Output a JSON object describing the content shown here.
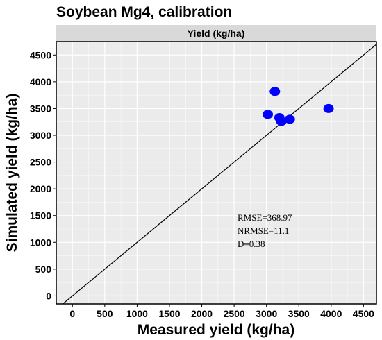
{
  "chart_data": {
    "type": "scatter",
    "title": "Soybean Mg4, calibration",
    "facet_label": "Yield (kg/ha)",
    "xlabel": "Measured yield (kg/ha)",
    "ylabel": "Simulated yield (kg/ha)",
    "xlim": [
      -250,
      4700
    ],
    "ylim": [
      -150,
      4750
    ],
    "xticks": [
      0,
      500,
      1000,
      1500,
      2000,
      2500,
      3000,
      3500,
      4000,
      4500
    ],
    "yticks": [
      0,
      500,
      1000,
      1500,
      2000,
      2500,
      3000,
      3500,
      4000,
      4500
    ],
    "grid": true,
    "reference_line": "1:1",
    "points": [
      {
        "x": 3130,
        "y": 3820
      },
      {
        "x": 3020,
        "y": 3390
      },
      {
        "x": 3200,
        "y": 3330
      },
      {
        "x": 3230,
        "y": 3260
      },
      {
        "x": 3360,
        "y": 3300
      },
      {
        "x": 3960,
        "y": 3500
      }
    ],
    "point_color": "#0000ff",
    "annotations": [
      "RMSE=368.97",
      "NRMSE=11.1",
      "D=0.38"
    ]
  }
}
